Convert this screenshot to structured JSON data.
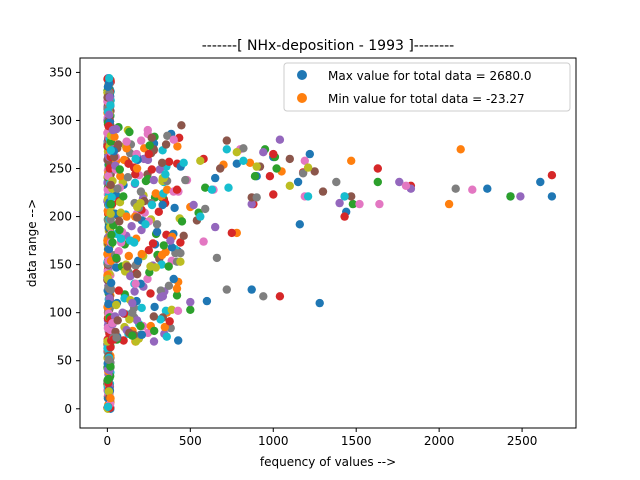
{
  "chart_data": {
    "type": "scatter",
    "title": "-------[ NHx-deposition - 1993 ]--------",
    "xlabel": "fequency of values -->",
    "ylabel": "data range -->",
    "xlim": [
      -165,
      2825
    ],
    "ylim": [
      -20,
      365
    ],
    "xticks": [
      0,
      500,
      1000,
      1500,
      2000,
      2500
    ],
    "yticks": [
      0,
      50,
      100,
      150,
      200,
      250,
      300,
      350
    ],
    "grid": false,
    "legend_position": "top-right",
    "legend": [
      {
        "label": "Max value for total data = 2680.0",
        "color": "#1f77b4"
      },
      {
        "label": "Min value for total data = -23.27",
        "color": "#ff7f0e"
      }
    ],
    "palette": [
      "#1f77b4",
      "#ff7f0e",
      "#2ca02c",
      "#d62728",
      "#9467bd",
      "#8c564b",
      "#e377c2",
      "#7f7f7f",
      "#bcbd22",
      "#17becf"
    ],
    "series_points": [
      [
        [
          2680,
          221
        ],
        [
          2610,
          236
        ],
        [
          2290,
          229
        ],
        [
          2430,
          221
        ],
        [
          1160,
          192
        ],
        [
          1220,
          265
        ],
        [
          870,
          124
        ],
        [
          1280,
          110
        ],
        [
          1440,
          205
        ],
        [
          1150,
          236
        ],
        [
          900,
          242
        ],
        [
          780,
          255
        ],
        [
          1000,
          262
        ],
        [
          600,
          112
        ],
        [
          650,
          240
        ],
        [
          400,
          135
        ],
        [
          300,
          184
        ]
      ],
      [
        [
          2060,
          213
        ],
        [
          1470,
          258
        ],
        [
          2130,
          270
        ],
        [
          1050,
          247
        ],
        [
          860,
          256
        ],
        [
          700,
          254
        ],
        [
          780,
          183
        ],
        [
          500,
          210
        ],
        [
          330,
          160
        ],
        [
          420,
          125
        ]
      ],
      [
        [
          2430,
          221
        ],
        [
          1630,
          236
        ],
        [
          1480,
          213
        ],
        [
          950,
          270
        ],
        [
          1010,
          262
        ],
        [
          1020,
          250
        ],
        [
          890,
          242
        ],
        [
          590,
          230
        ],
        [
          450,
          195
        ],
        [
          550,
          204
        ],
        [
          370,
          148
        ],
        [
          500,
          103
        ],
        [
          340,
          170
        ],
        [
          200,
          86
        ],
        [
          150,
          76
        ]
      ],
      [
        [
          2680,
          243
        ],
        [
          1830,
          232
        ],
        [
          1040,
          117
        ],
        [
          1430,
          200
        ],
        [
          1000,
          265
        ],
        [
          1180,
          246
        ],
        [
          1630,
          250
        ],
        [
          1000,
          223
        ],
        [
          980,
          242
        ],
        [
          880,
          213
        ],
        [
          750,
          183
        ],
        [
          580,
          260
        ],
        [
          420,
          228
        ],
        [
          310,
          205
        ],
        [
          250,
          265
        ],
        [
          260,
          120
        ]
      ],
      [
        [
          2490,
          221
        ],
        [
          1760,
          236
        ],
        [
          1830,
          229
        ],
        [
          1400,
          214
        ],
        [
          1430,
          221
        ],
        [
          870,
          213
        ],
        [
          1040,
          280
        ],
        [
          940,
          267
        ],
        [
          650,
          189
        ],
        [
          500,
          111
        ],
        [
          520,
          212
        ],
        [
          380,
          175
        ],
        [
          280,
          238
        ],
        [
          150,
          110
        ]
      ],
      [
        [
          1470,
          221
        ],
        [
          1250,
          247
        ],
        [
          1100,
          260
        ],
        [
          1300,
          226
        ],
        [
          870,
          220
        ],
        [
          920,
          252
        ],
        [
          720,
          279
        ],
        [
          680,
          250
        ],
        [
          540,
          196
        ],
        [
          460,
          180
        ],
        [
          330,
          256
        ],
        [
          280,
          96
        ],
        [
          180,
          140
        ]
      ],
      [
        [
          1640,
          213
        ],
        [
          1520,
          213
        ],
        [
          1190,
          258
        ],
        [
          1800,
          232
        ],
        [
          2200,
          228
        ],
        [
          1190,
          221
        ],
        [
          800,
          270
        ],
        [
          640,
          228
        ],
        [
          580,
          174
        ],
        [
          480,
          238
        ],
        [
          400,
          280
        ],
        [
          250,
          195
        ],
        [
          170,
          130
        ]
      ],
      [
        [
          2100,
          229
        ],
        [
          1380,
          236
        ],
        [
          940,
          117
        ],
        [
          720,
          124
        ],
        [
          1180,
          245
        ],
        [
          900,
          220
        ],
        [
          820,
          271
        ],
        [
          660,
          157
        ],
        [
          590,
          208
        ],
        [
          470,
          238
        ],
        [
          420,
          153
        ],
        [
          300,
          192
        ],
        [
          150,
          100
        ]
      ],
      [
        [
          1210,
          251
        ],
        [
          1100,
          232
        ],
        [
          900,
          252
        ],
        [
          780,
          267
        ],
        [
          560,
          258
        ],
        [
          440,
          153
        ],
        [
          340,
          240
        ],
        [
          260,
          148
        ],
        [
          200,
          214
        ],
        [
          180,
          210
        ]
      ],
      [
        [
          1430,
          221
        ],
        [
          1210,
          221
        ],
        [
          820,
          258
        ],
        [
          730,
          230
        ],
        [
          720,
          270
        ],
        [
          630,
          228
        ],
        [
          560,
          200
        ],
        [
          460,
          256
        ],
        [
          350,
          244
        ],
        [
          230,
          192
        ],
        [
          170,
          260
        ]
      ]
    ]
  }
}
